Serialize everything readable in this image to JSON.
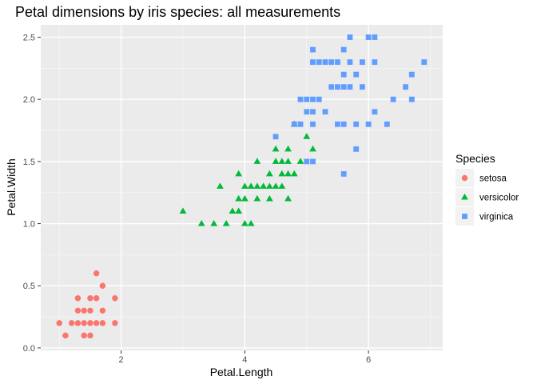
{
  "chart_data": {
    "type": "scatter",
    "title": "Petal dimensions by iris species: all measurements",
    "xlabel": "Petal.Length",
    "ylabel": "Petal.Width",
    "xlim": [
      0.7,
      7.2
    ],
    "ylim": [
      -0.02,
      2.6
    ],
    "x_ticks": [
      2,
      4,
      6
    ],
    "y_ticks": [
      0.0,
      0.5,
      1.0,
      1.5,
      2.0,
      2.5
    ],
    "y_tick_labels": [
      "0.0",
      "0.5",
      "1.0",
      "1.5",
      "2.0",
      "2.5"
    ],
    "x_tick_labels": [
      "2",
      "4",
      "6"
    ],
    "grid": true,
    "legend_position": "right",
    "legend_title": "Species",
    "series": [
      {
        "name": "setosa",
        "color": "#F8766D",
        "shape": "circle",
        "points": [
          [
            1.0,
            0.2
          ],
          [
            1.1,
            0.1
          ],
          [
            1.2,
            0.2
          ],
          [
            1.3,
            0.2
          ],
          [
            1.3,
            0.3
          ],
          [
            1.3,
            0.4
          ],
          [
            1.4,
            0.1
          ],
          [
            1.4,
            0.2
          ],
          [
            1.4,
            0.3
          ],
          [
            1.5,
            0.1
          ],
          [
            1.5,
            0.2
          ],
          [
            1.5,
            0.3
          ],
          [
            1.5,
            0.4
          ],
          [
            1.6,
            0.2
          ],
          [
            1.6,
            0.4
          ],
          [
            1.6,
            0.6
          ],
          [
            1.7,
            0.2
          ],
          [
            1.7,
            0.3
          ],
          [
            1.7,
            0.5
          ],
          [
            1.9,
            0.2
          ],
          [
            1.9,
            0.4
          ]
        ]
      },
      {
        "name": "versicolor",
        "color": "#00BA38",
        "shape": "triangle",
        "points": [
          [
            3.0,
            1.1
          ],
          [
            3.3,
            1.0
          ],
          [
            3.5,
            1.0
          ],
          [
            3.6,
            1.3
          ],
          [
            3.7,
            1.0
          ],
          [
            3.8,
            1.1
          ],
          [
            3.9,
            1.1
          ],
          [
            3.9,
            1.2
          ],
          [
            3.9,
            1.4
          ],
          [
            4.0,
            1.0
          ],
          [
            4.0,
            1.2
          ],
          [
            4.0,
            1.3
          ],
          [
            4.1,
            1.0
          ],
          [
            4.1,
            1.3
          ],
          [
            4.2,
            1.2
          ],
          [
            4.2,
            1.3
          ],
          [
            4.2,
            1.5
          ],
          [
            4.3,
            1.3
          ],
          [
            4.4,
            1.2
          ],
          [
            4.4,
            1.3
          ],
          [
            4.4,
            1.4
          ],
          [
            4.5,
            1.3
          ],
          [
            4.5,
            1.5
          ],
          [
            4.5,
            1.6
          ],
          [
            4.6,
            1.3
          ],
          [
            4.6,
            1.4
          ],
          [
            4.6,
            1.5
          ],
          [
            4.7,
            1.2
          ],
          [
            4.7,
            1.4
          ],
          [
            4.7,
            1.5
          ],
          [
            4.7,
            1.6
          ],
          [
            4.8,
            1.4
          ],
          [
            4.8,
            1.8
          ],
          [
            4.9,
            1.5
          ],
          [
            5.0,
            1.7
          ],
          [
            5.1,
            1.6
          ]
        ]
      },
      {
        "name": "virginica",
        "color": "#619CFF",
        "shape": "square",
        "points": [
          [
            4.5,
            1.7
          ],
          [
            4.8,
            1.8
          ],
          [
            4.9,
            1.8
          ],
          [
            4.9,
            2.0
          ],
          [
            5.0,
            1.5
          ],
          [
            5.0,
            1.9
          ],
          [
            5.0,
            2.0
          ],
          [
            5.1,
            1.5
          ],
          [
            5.1,
            1.8
          ],
          [
            5.1,
            1.9
          ],
          [
            5.1,
            2.0
          ],
          [
            5.1,
            2.3
          ],
          [
            5.1,
            2.4
          ],
          [
            5.2,
            2.0
          ],
          [
            5.2,
            2.3
          ],
          [
            5.3,
            1.9
          ],
          [
            5.3,
            2.3
          ],
          [
            5.4,
            2.1
          ],
          [
            5.4,
            2.3
          ],
          [
            5.5,
            1.8
          ],
          [
            5.5,
            2.1
          ],
          [
            5.5,
            2.3
          ],
          [
            5.6,
            1.4
          ],
          [
            5.6,
            1.8
          ],
          [
            5.6,
            2.1
          ],
          [
            5.6,
            2.2
          ],
          [
            5.6,
            2.4
          ],
          [
            5.7,
            2.1
          ],
          [
            5.7,
            2.3
          ],
          [
            5.7,
            2.5
          ],
          [
            5.8,
            1.6
          ],
          [
            5.8,
            1.8
          ],
          [
            5.8,
            2.2
          ],
          [
            5.9,
            2.1
          ],
          [
            5.9,
            2.3
          ],
          [
            6.0,
            1.8
          ],
          [
            6.0,
            2.5
          ],
          [
            6.1,
            1.9
          ],
          [
            6.1,
            2.3
          ],
          [
            6.1,
            2.5
          ],
          [
            6.3,
            1.8
          ],
          [
            6.4,
            2.0
          ],
          [
            6.6,
            2.1
          ],
          [
            6.7,
            2.0
          ],
          [
            6.7,
            2.2
          ],
          [
            6.9,
            2.3
          ]
        ]
      }
    ]
  }
}
